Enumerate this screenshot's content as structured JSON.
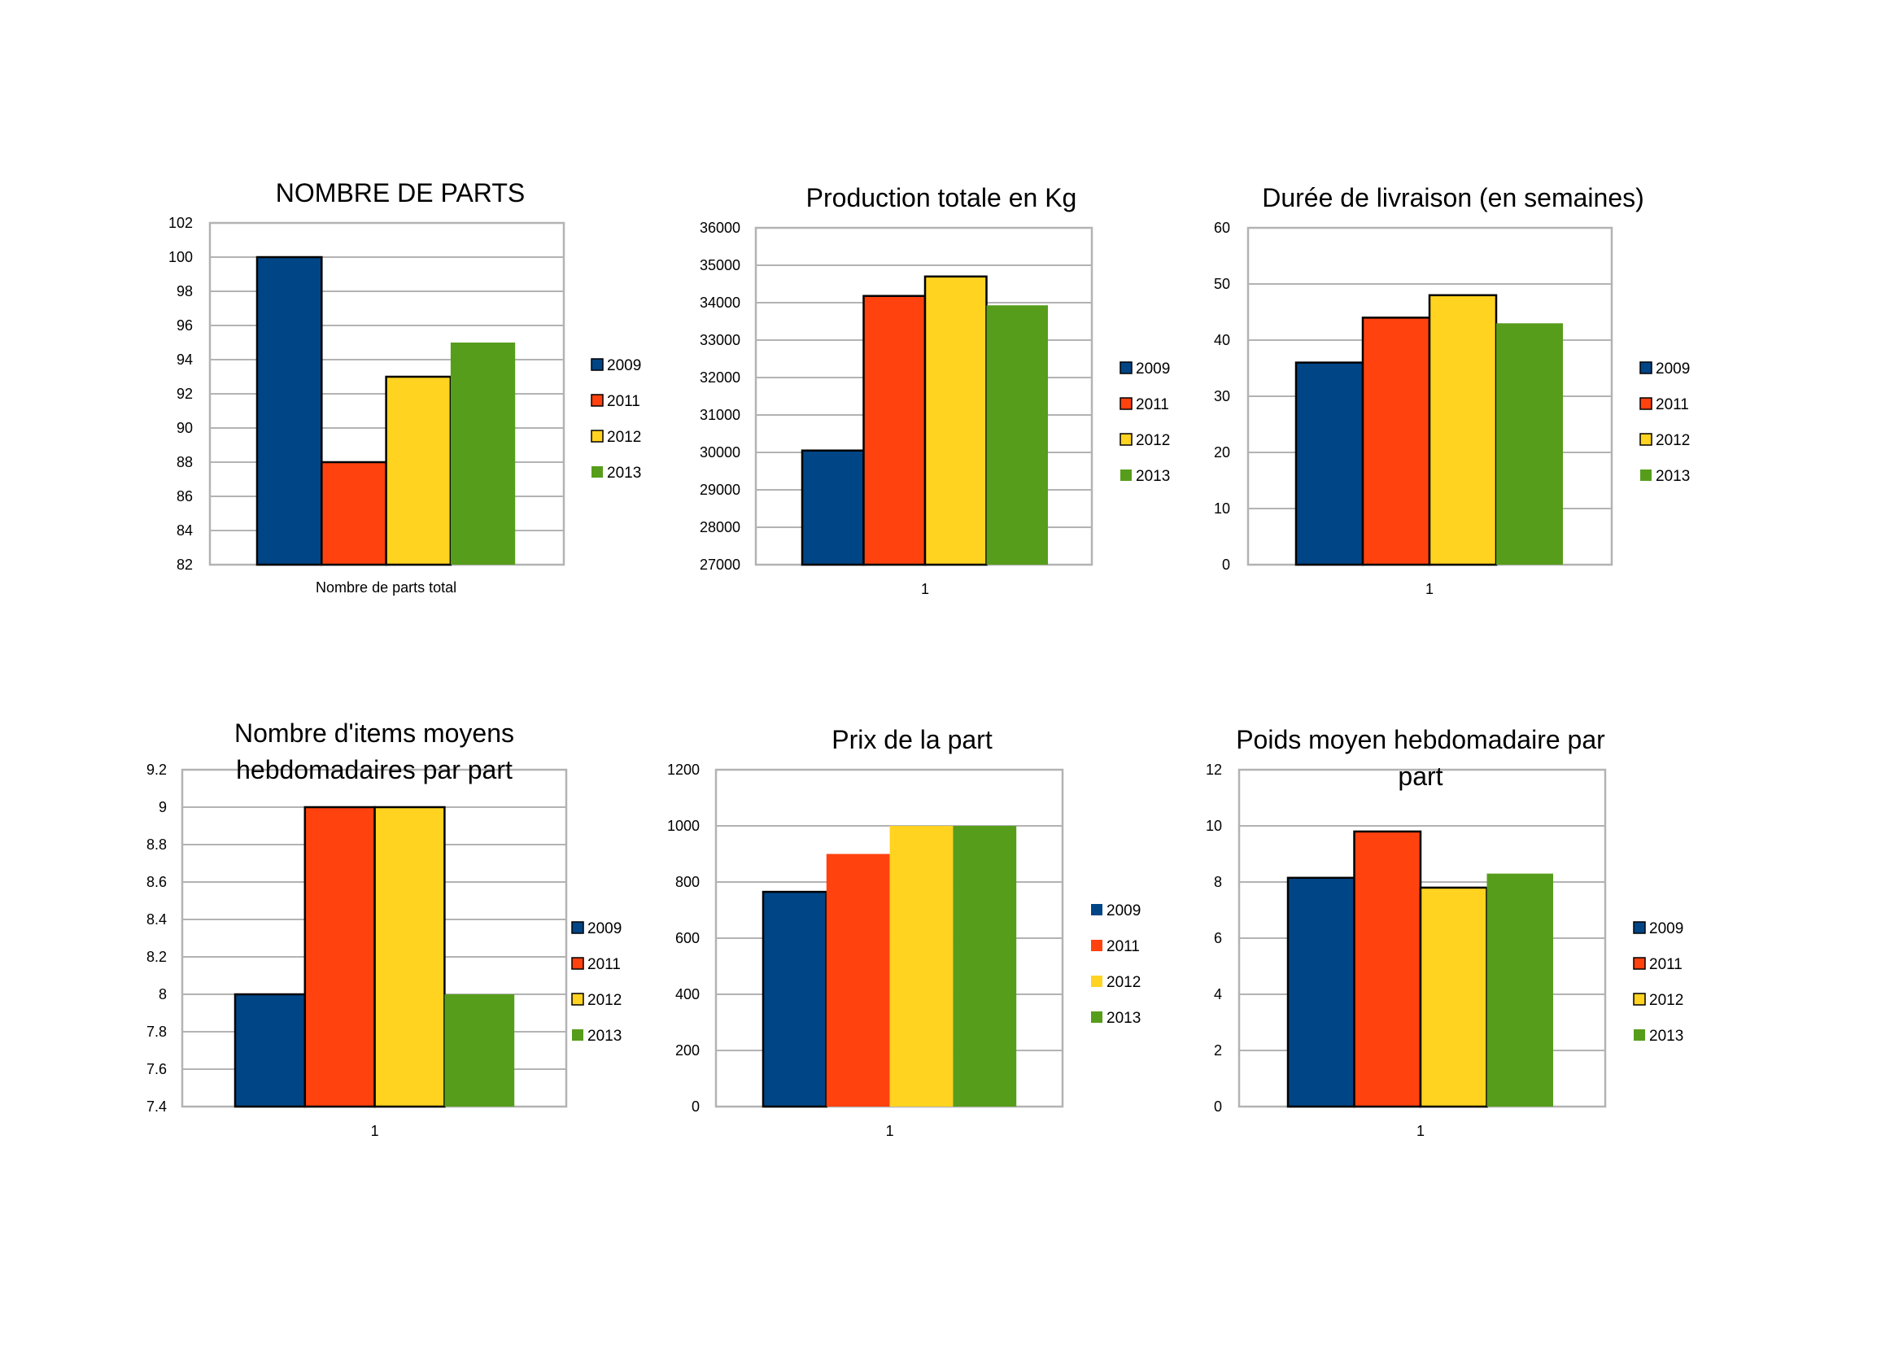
{
  "legend_years": [
    "2009",
    "2011",
    "2012",
    "2013"
  ],
  "colors": {
    "2009": "#004586",
    "2011": "#ff420e",
    "2012": "#ffd320",
    "2013": "#579d1c"
  },
  "chart_data": [
    {
      "type": "bar",
      "title": [
        "NOMBRE DE PARTS"
      ],
      "categories": [
        "Nombre de parts total"
      ],
      "series": [
        {
          "name": "2009",
          "values": [
            100
          ]
        },
        {
          "name": "2011",
          "values": [
            88
          ]
        },
        {
          "name": "2012",
          "values": [
            93
          ]
        },
        {
          "name": "2013",
          "values": [
            95
          ]
        }
      ],
      "ylim": [
        82,
        102
      ],
      "yticks": [
        "82",
        "84",
        "86",
        "88",
        "90",
        "92",
        "94",
        "96",
        "98",
        "100",
        "102"
      ],
      "outlined": [
        "2009",
        "2011",
        "2012"
      ],
      "legend_outlined": [
        "2009",
        "2011",
        "2012"
      ],
      "legend": "right",
      "grid": true
    },
    {
      "type": "bar",
      "title": [
        "Production totale en Kg"
      ],
      "categories": [
        "1"
      ],
      "series": [
        {
          "name": "2009",
          "values": [
            30050
          ]
        },
        {
          "name": "2011",
          "values": [
            34180
          ]
        },
        {
          "name": "2012",
          "values": [
            34700
          ]
        },
        {
          "name": "2013",
          "values": [
            33930
          ]
        }
      ],
      "ylim": [
        27000,
        36000
      ],
      "yticks": [
        "27000",
        "28000",
        "29000",
        "30000",
        "31000",
        "32000",
        "33000",
        "34000",
        "35000",
        "36000"
      ],
      "outlined": [
        "2009",
        "2011",
        "2012"
      ],
      "legend_outlined": [
        "2009",
        "2011",
        "2012"
      ],
      "legend": "right",
      "grid": true
    },
    {
      "type": "bar",
      "title": [
        "Durée de livraison (en semaines)"
      ],
      "categories": [
        "1"
      ],
      "series": [
        {
          "name": "2009",
          "values": [
            36
          ]
        },
        {
          "name": "2011",
          "values": [
            44
          ]
        },
        {
          "name": "2012",
          "values": [
            48
          ]
        },
        {
          "name": "2013",
          "values": [
            43
          ]
        }
      ],
      "ylim": [
        0,
        60
      ],
      "yticks": [
        "0",
        "10",
        "20",
        "30",
        "40",
        "50",
        "60"
      ],
      "outlined": [
        "2009",
        "2011",
        "2012"
      ],
      "legend_outlined": [
        "2009",
        "2011",
        "2012"
      ],
      "legend": "right",
      "grid": true
    },
    {
      "type": "bar",
      "title": [
        "Nombre d'items moyens",
        "hebdomadaires par part"
      ],
      "categories": [
        "1"
      ],
      "series": [
        {
          "name": "2009",
          "values": [
            8
          ]
        },
        {
          "name": "2011",
          "values": [
            9
          ]
        },
        {
          "name": "2012",
          "values": [
            9
          ]
        },
        {
          "name": "2013",
          "values": [
            8
          ]
        }
      ],
      "ylim": [
        7.4,
        9.2
      ],
      "yticks": [
        "7.4",
        "7.6",
        "7.8",
        "8",
        "8.2",
        "8.4",
        "8.6",
        "8.8",
        "9",
        "9.2"
      ],
      "outlined": [
        "2009",
        "2011",
        "2012"
      ],
      "legend_outlined": [
        "2009",
        "2011",
        "2012"
      ],
      "legend": "right",
      "grid": true
    },
    {
      "type": "bar",
      "title": [
        "Prix de la part"
      ],
      "categories": [
        "1"
      ],
      "series": [
        {
          "name": "2009",
          "values": [
            765
          ]
        },
        {
          "name": "2011",
          "values": [
            900
          ]
        },
        {
          "name": "2012",
          "values": [
            1000
          ]
        },
        {
          "name": "2013",
          "values": [
            1000
          ]
        }
      ],
      "ylim": [
        0,
        1200
      ],
      "yticks": [
        "0",
        "200",
        "400",
        "600",
        "800",
        "1000",
        "1200"
      ],
      "outlined": [
        "2009"
      ],
      "legend_outlined": [],
      "legend": "right",
      "grid": true
    },
    {
      "type": "bar",
      "title": [
        "Poids moyen hebdomadaire par",
        "part"
      ],
      "categories": [
        "1"
      ],
      "series": [
        {
          "name": "2009",
          "values": [
            8.15
          ]
        },
        {
          "name": "2011",
          "values": [
            9.8
          ]
        },
        {
          "name": "2012",
          "values": [
            7.8
          ]
        },
        {
          "name": "2013",
          "values": [
            8.3
          ]
        }
      ],
      "ylim": [
        0,
        12
      ],
      "yticks": [
        "0",
        "2",
        "4",
        "6",
        "8",
        "10",
        "12"
      ],
      "outlined": [
        "2009",
        "2011",
        "2012"
      ],
      "legend_outlined": [
        "2009",
        "2011",
        "2012"
      ],
      "legend": "right",
      "grid": true
    }
  ]
}
